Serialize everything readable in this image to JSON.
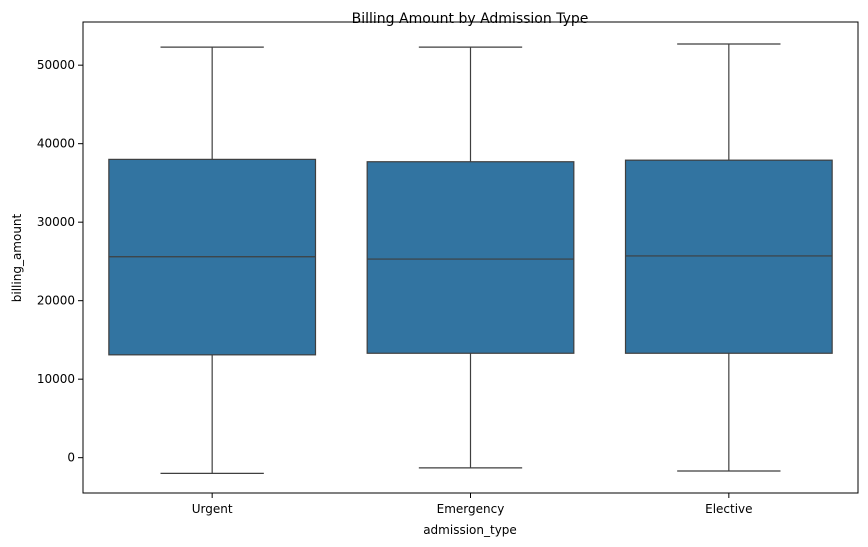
{
  "chart_data": {
    "type": "box",
    "title": "Billing Amount by Admission Type",
    "xlabel": "admission_type",
    "ylabel": "billing_amount",
    "ylim": [
      -4500,
      55500
    ],
    "yticks": [
      0,
      10000,
      20000,
      30000,
      40000,
      50000
    ],
    "categories": [
      "Urgent",
      "Emergency",
      "Elective"
    ],
    "box_color": "#3274a1",
    "line_color": "#3f3f3f",
    "grid": false,
    "legend": "none",
    "boxes": [
      {
        "category": "Urgent",
        "whisker_low": -2000,
        "q1": 13100,
        "median": 25600,
        "q3": 38000,
        "whisker_high": 52300
      },
      {
        "category": "Emergency",
        "whisker_low": -1300,
        "q1": 13300,
        "median": 25300,
        "q3": 37700,
        "whisker_high": 52300
      },
      {
        "category": "Elective",
        "whisker_low": -1700,
        "q1": 13300,
        "median": 25700,
        "q3": 37900,
        "whisker_high": 52700
      }
    ]
  }
}
